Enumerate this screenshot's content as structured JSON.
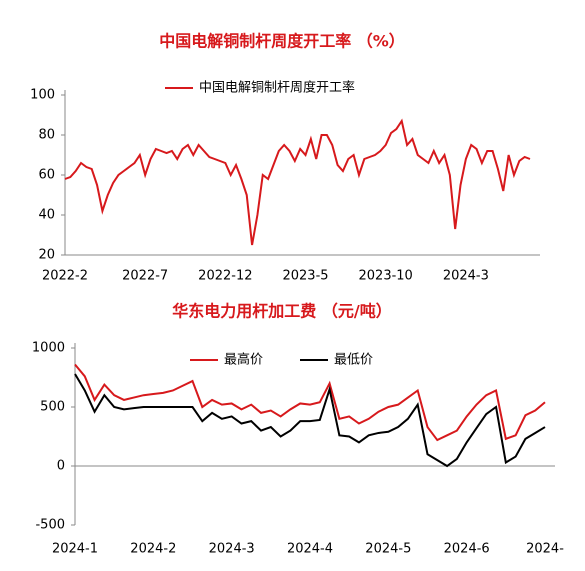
{
  "chart_data": [
    {
      "type": "line",
      "title": "中国电解铜制杆周度开工率 （%）",
      "categories": [
        "2022-2",
        null,
        null,
        null,
        null,
        null,
        null,
        null,
        null,
        null,
        null,
        null,
        null,
        null,
        null,
        "2022-7",
        null,
        null,
        null,
        null,
        null,
        null,
        null,
        null,
        null,
        null,
        null,
        null,
        null,
        null,
        "2022-12",
        null,
        null,
        null,
        null,
        null,
        null,
        null,
        null,
        null,
        null,
        null,
        null,
        null,
        null,
        "2023-5",
        null,
        null,
        null,
        null,
        null,
        null,
        null,
        null,
        null,
        null,
        null,
        null,
        null,
        null,
        "2023-10",
        null,
        null,
        null,
        null,
        null,
        null,
        null,
        null,
        null,
        null,
        null,
        null,
        null,
        null,
        "2024-3",
        null,
        null,
        null,
        null,
        null,
        null,
        null,
        null,
        null,
        null,
        null,
        null
      ],
      "series": [
        {
          "name": "中国电解铜制杆周度开工率",
          "color": "#d7191c",
          "values": [
            58,
            59,
            62,
            66,
            64,
            63,
            55,
            42,
            50,
            56,
            60,
            62,
            64,
            66,
            70,
            60,
            68,
            73,
            72,
            71,
            72,
            68,
            73,
            75,
            70,
            75,
            72,
            69,
            68,
            67,
            66,
            60,
            65,
            58,
            50,
            25,
            40,
            60,
            58,
            65,
            72,
            75,
            72,
            67,
            73,
            70,
            78,
            68,
            80,
            80,
            75,
            65,
            62,
            68,
            70,
            60,
            68,
            69,
            70,
            72,
            75,
            81,
            83,
            87,
            75,
            78,
            70,
            68,
            66,
            72,
            66,
            70,
            60,
            33,
            55,
            68,
            75,
            73,
            66,
            72,
            72,
            63,
            52,
            70,
            60,
            67,
            69,
            68
          ]
        }
      ],
      "ylim": [
        20,
        100
      ],
      "yticks": [
        20,
        40,
        60,
        80,
        100
      ]
    },
    {
      "type": "line",
      "title": "华东电力用杆加工费 （元/吨）",
      "categories": [
        "2024-1",
        null,
        null,
        null,
        null,
        null,
        null,
        null,
        "2024-2",
        null,
        null,
        null,
        null,
        null,
        null,
        null,
        "2024-3",
        null,
        null,
        null,
        null,
        null,
        null,
        null,
        "2024-4",
        null,
        null,
        null,
        null,
        null,
        null,
        null,
        "2024-5",
        null,
        null,
        null,
        null,
        null,
        null,
        null,
        "2024-6",
        null,
        null,
        null,
        null,
        null,
        null,
        null,
        "2024-"
      ],
      "series": [
        {
          "name": "最高价",
          "color": "#d7191c",
          "values": [
            860,
            760,
            560,
            690,
            600,
            560,
            580,
            600,
            610,
            620,
            640,
            680,
            720,
            500,
            560,
            520,
            530,
            480,
            520,
            450,
            470,
            420,
            480,
            530,
            520,
            540,
            700,
            400,
            420,
            360,
            400,
            460,
            500,
            520,
            580,
            640,
            330,
            220,
            260,
            300,
            420,
            520,
            600,
            640,
            230,
            260,
            430,
            470,
            540
          ]
        },
        {
          "name": "最低价",
          "color": "#000000",
          "values": [
            780,
            640,
            460,
            600,
            500,
            480,
            490,
            500,
            500,
            500,
            500,
            500,
            500,
            380,
            450,
            400,
            420,
            360,
            380,
            300,
            330,
            250,
            300,
            380,
            380,
            390,
            650,
            260,
            250,
            200,
            260,
            280,
            290,
            330,
            400,
            520,
            100,
            50,
            0,
            60,
            200,
            320,
            440,
            500,
            30,
            80,
            230,
            280,
            330
          ]
        }
      ],
      "ylim": [
        -500,
        1000
      ],
      "yticks": [
        -500,
        0,
        500,
        1000
      ]
    }
  ]
}
